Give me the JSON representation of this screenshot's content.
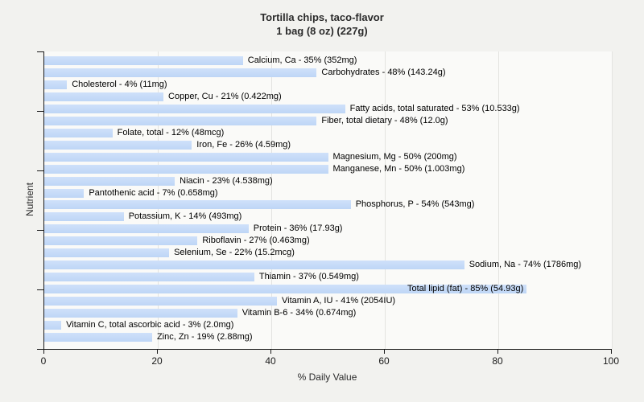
{
  "title": "Tortilla chips, taco-flavor",
  "subtitle": "1 bag (8 oz) (227g)",
  "chart_data": {
    "type": "bar",
    "orientation": "horizontal",
    "title": "Tortilla chips, taco-flavor",
    "subtitle": "1 bag (8 oz) (227g)",
    "xlabel": "% Daily Value",
    "ylabel": "Nutrient",
    "xlim": [
      0,
      100
    ],
    "xticks": [
      0,
      20,
      40,
      60,
      80,
      100
    ],
    "gridlines": [
      20,
      40,
      60,
      80,
      100
    ],
    "grid": true,
    "legend": "none",
    "bar_color": "#c4daf7",
    "bars": [
      {
        "nutrient": "Calcium, Ca",
        "percent": 35,
        "amount": "352mg",
        "label": "Calcium, Ca - 35% (352mg)"
      },
      {
        "nutrient": "Carbohydrates",
        "percent": 48,
        "amount": "143.24g",
        "label": "Carbohydrates - 48% (143.24g)"
      },
      {
        "nutrient": "Cholesterol",
        "percent": 4,
        "amount": "11mg",
        "label": "Cholesterol - 4% (11mg)"
      },
      {
        "nutrient": "Copper, Cu",
        "percent": 21,
        "amount": "0.422mg",
        "label": "Copper, Cu - 21% (0.422mg)"
      },
      {
        "nutrient": "Fatty acids, total saturated",
        "percent": 53,
        "amount": "10.533g",
        "label": "Fatty acids, total saturated - 53% (10.533g)"
      },
      {
        "nutrient": "Fiber, total dietary",
        "percent": 48,
        "amount": "12.0g",
        "label": "Fiber, total dietary - 48% (12.0g)"
      },
      {
        "nutrient": "Folate, total",
        "percent": 12,
        "amount": "48mcg",
        "label": "Folate, total - 12% (48mcg)"
      },
      {
        "nutrient": "Iron, Fe",
        "percent": 26,
        "amount": "4.59mg",
        "label": "Iron, Fe - 26% (4.59mg)"
      },
      {
        "nutrient": "Magnesium, Mg",
        "percent": 50,
        "amount": "200mg",
        "label": "Magnesium, Mg - 50% (200mg)"
      },
      {
        "nutrient": "Manganese, Mn",
        "percent": 50,
        "amount": "1.003mg",
        "label": "Manganese, Mn - 50% (1.003mg)"
      },
      {
        "nutrient": "Niacin",
        "percent": 23,
        "amount": "4.538mg",
        "label": "Niacin - 23% (4.538mg)"
      },
      {
        "nutrient": "Pantothenic acid",
        "percent": 7,
        "amount": "0.658mg",
        "label": "Pantothenic acid - 7% (0.658mg)"
      },
      {
        "nutrient": "Phosphorus, P",
        "percent": 54,
        "amount": "543mg",
        "label": "Phosphorus, P - 54% (543mg)"
      },
      {
        "nutrient": "Potassium, K",
        "percent": 14,
        "amount": "493mg",
        "label": "Potassium, K - 14% (493mg)"
      },
      {
        "nutrient": "Protein",
        "percent": 36,
        "amount": "17.93g",
        "label": "Protein - 36% (17.93g)"
      },
      {
        "nutrient": "Riboflavin",
        "percent": 27,
        "amount": "0.463mg",
        "label": "Riboflavin - 27% (0.463mg)"
      },
      {
        "nutrient": "Selenium, Se",
        "percent": 22,
        "amount": "15.2mcg",
        "label": "Selenium, Se - 22% (15.2mcg)"
      },
      {
        "nutrient": "Sodium, Na",
        "percent": 74,
        "amount": "1786mg",
        "label": "Sodium, Na - 74% (1786mg)"
      },
      {
        "nutrient": "Thiamin",
        "percent": 37,
        "amount": "0.549mg",
        "label": "Thiamin - 37% (0.549mg)"
      },
      {
        "nutrient": "Total lipid (fat)",
        "percent": 85,
        "amount": "54.93g",
        "label": "Total lipid (fat) - 85% (54.93g)",
        "label_inside": true
      },
      {
        "nutrient": "Vitamin A, IU",
        "percent": 41,
        "amount": "2054IU",
        "label": "Vitamin A, IU - 41% (2054IU)"
      },
      {
        "nutrient": "Vitamin B-6",
        "percent": 34,
        "amount": "0.674mg",
        "label": "Vitamin B-6 - 34% (0.674mg)"
      },
      {
        "nutrient": "Vitamin C, total ascorbic acid",
        "percent": 3,
        "amount": "2.0mg",
        "label": "Vitamin C, total ascorbic acid - 3% (2.0mg)"
      },
      {
        "nutrient": "Zinc, Zn",
        "percent": 19,
        "amount": "2.88mg",
        "label": "Zinc, Zn - 19% (2.88mg)"
      }
    ]
  }
}
